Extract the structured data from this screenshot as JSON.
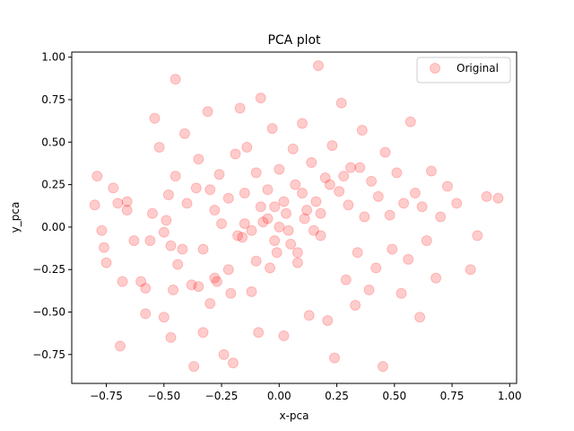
{
  "chart_data": {
    "type": "scatter",
    "title": "PCA plot",
    "xlabel": "x-pca",
    "ylabel": "y_pca",
    "xlim": [
      -0.9,
      1.03
    ],
    "ylim": [
      -0.92,
      1.03
    ],
    "xticks": [
      -0.75,
      -0.5,
      -0.25,
      0.0,
      0.25,
      0.5,
      0.75,
      1.0
    ],
    "yticks": [
      -0.75,
      -0.5,
      -0.25,
      0.0,
      0.25,
      0.5,
      0.75,
      1.0
    ],
    "xtick_labels": [
      "−0.75",
      "−0.50",
      "−0.25",
      "0.00",
      "0.25",
      "0.50",
      "0.75",
      "1.00"
    ],
    "ytick_labels": [
      "−0.75",
      "−0.50",
      "−0.25",
      "0.00",
      "0.25",
      "0.50",
      "0.75",
      "1.00"
    ],
    "grid": false,
    "legend_position": "top-right",
    "series": [
      {
        "name": "Original",
        "color": "#ff0000",
        "alpha": 0.2,
        "x": [
          -0.8,
          -0.79,
          -0.77,
          -0.76,
          -0.75,
          -0.72,
          -0.7,
          -0.69,
          -0.68,
          -0.66,
          -0.66,
          -0.63,
          -0.6,
          -0.58,
          -0.58,
          -0.56,
          -0.55,
          -0.54,
          -0.52,
          -0.5,
          -0.5,
          -0.49,
          -0.48,
          -0.47,
          -0.47,
          -0.46,
          -0.45,
          -0.45,
          -0.44,
          -0.42,
          -0.41,
          -0.4,
          -0.38,
          -0.37,
          -0.36,
          -0.35,
          -0.33,
          -0.33,
          -0.31,
          -0.3,
          -0.3,
          -0.28,
          -0.27,
          -0.26,
          -0.25,
          -0.24,
          -0.22,
          -0.21,
          -0.2,
          -0.19,
          -0.17,
          -0.16,
          -0.15,
          -0.14,
          -0.12,
          -0.1,
          -0.09,
          -0.08,
          -0.07,
          -0.05,
          -0.04,
          -0.03,
          -0.02,
          -0.01,
          0.0,
          0.02,
          0.03,
          0.04,
          0.06,
          0.07,
          0.08,
          0.1,
          0.11,
          0.13,
          0.14,
          0.16,
          0.17,
          0.18,
          0.2,
          0.21,
          0.23,
          0.24,
          0.26,
          0.27,
          0.29,
          0.3,
          0.31,
          0.33,
          0.34,
          0.36,
          0.37,
          0.39,
          0.4,
          0.42,
          0.43,
          0.45,
          0.46,
          0.48,
          0.49,
          0.51,
          0.53,
          0.54,
          0.56,
          0.57,
          0.59,
          0.61,
          0.62,
          0.64,
          0.66,
          0.68,
          0.7,
          0.73,
          0.77,
          0.83,
          0.86,
          0.9,
          0.95,
          -0.12,
          -0.05,
          0.05,
          0.12,
          -0.18,
          0.18,
          -0.08,
          0.08,
          0.0,
          -0.02,
          0.02,
          0.1,
          -0.1,
          0.15,
          -0.15,
          0.22,
          -0.22,
          0.28,
          -0.28,
          0.35,
          -0.35
        ],
        "y": [
          0.13,
          0.3,
          -0.02,
          -0.12,
          -0.21,
          0.23,
          0.14,
          -0.7,
          -0.32,
          0.1,
          0.15,
          -0.08,
          -0.32,
          -0.36,
          -0.51,
          -0.08,
          0.08,
          0.64,
          0.47,
          -0.03,
          -0.53,
          0.04,
          0.19,
          -0.11,
          -0.65,
          -0.37,
          0.3,
          0.87,
          -0.22,
          -0.13,
          0.55,
          0.14,
          -0.34,
          -0.82,
          0.23,
          0.4,
          -0.62,
          -0.13,
          0.68,
          0.22,
          -0.45,
          0.1,
          -0.32,
          0.31,
          0.02,
          -0.75,
          0.17,
          -0.39,
          -0.8,
          0.43,
          0.7,
          -0.06,
          0.2,
          0.47,
          -0.38,
          0.32,
          -0.62,
          0.76,
          0.03,
          0.22,
          -0.24,
          0.58,
          0.12,
          -0.15,
          0.34,
          -0.64,
          0.08,
          -0.02,
          0.46,
          0.25,
          -0.21,
          0.61,
          0.05,
          -0.52,
          0.38,
          0.15,
          0.95,
          -0.05,
          0.29,
          -0.55,
          0.48,
          -0.77,
          0.21,
          0.73,
          -0.31,
          0.13,
          0.35,
          -0.46,
          -0.15,
          0.57,
          0.06,
          -0.37,
          0.27,
          -0.24,
          0.18,
          -0.82,
          0.44,
          0.07,
          -0.13,
          0.32,
          -0.39,
          0.14,
          -0.19,
          0.62,
          0.2,
          -0.53,
          0.12,
          -0.08,
          0.33,
          -0.3,
          0.06,
          0.24,
          0.14,
          -0.25,
          -0.05,
          0.18,
          0.17,
          -0.02,
          0.05,
          -0.1,
          0.1,
          -0.05,
          0.08,
          0.12,
          -0.15,
          0.0,
          -0.08,
          0.15,
          0.2,
          -0.2,
          -0.02,
          0.02,
          0.25,
          -0.25,
          0.3,
          -0.3,
          0.35,
          -0.35
        ]
      }
    ]
  }
}
